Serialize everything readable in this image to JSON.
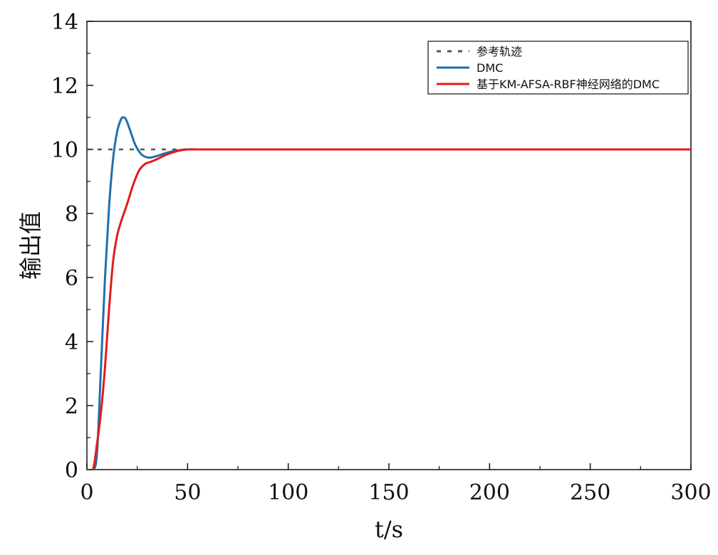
{
  "chart_data": {
    "type": "line",
    "title": "",
    "xlabel": "t/s",
    "ylabel": "输出值",
    "xlim": [
      0,
      300
    ],
    "ylim": [
      0,
      14
    ],
    "x_ticks": [
      0,
      50,
      100,
      150,
      200,
      250,
      300
    ],
    "y_ticks": [
      0,
      2,
      4,
      6,
      8,
      10,
      12,
      14
    ],
    "grid": false,
    "legend_position": "top-right",
    "series": [
      {
        "name": "参考轨迹",
        "style": "dashed",
        "color": "#555555",
        "x": [
          0,
          50,
          100,
          150,
          200,
          250,
          300
        ],
        "y": [
          10,
          10,
          10,
          10,
          10,
          10,
          10
        ]
      },
      {
        "name": "DMC",
        "style": "solid",
        "color": "#1f6fad",
        "x": [
          0,
          3,
          5,
          7,
          9,
          11,
          13,
          15,
          17,
          18,
          19,
          20,
          22,
          24,
          27,
          30,
          32,
          35,
          40,
          45,
          50,
          55,
          60,
          70,
          100,
          150,
          200,
          250,
          300
        ],
        "y": [
          0,
          0,
          0.5,
          3.2,
          6.0,
          8.2,
          9.7,
          10.55,
          10.95,
          11.0,
          10.98,
          10.85,
          10.5,
          10.15,
          9.85,
          9.75,
          9.75,
          9.8,
          9.9,
          9.97,
          10.0,
          10.0,
          10.0,
          10.0,
          10.0,
          10.0,
          10.0,
          10.0,
          10.0
        ]
      },
      {
        "name": "基于KM-AFSA-RBF神经网络的DMC",
        "style": "solid",
        "color": "#e31a1c",
        "x": [
          0,
          3,
          5,
          7,
          9,
          11,
          13,
          15,
          17,
          20,
          23,
          26,
          29,
          32,
          35,
          40,
          45,
          50,
          55,
          60,
          70,
          100,
          150,
          200,
          250,
          300
        ],
        "y": [
          0,
          0,
          0.8,
          1.8,
          3.2,
          5.0,
          6.5,
          7.3,
          7.75,
          8.3,
          8.9,
          9.35,
          9.55,
          9.62,
          9.7,
          9.85,
          9.95,
          10.0,
          10.0,
          10.0,
          10.0,
          10.0,
          10.0,
          10.0,
          10.0,
          10.0
        ]
      }
    ]
  }
}
